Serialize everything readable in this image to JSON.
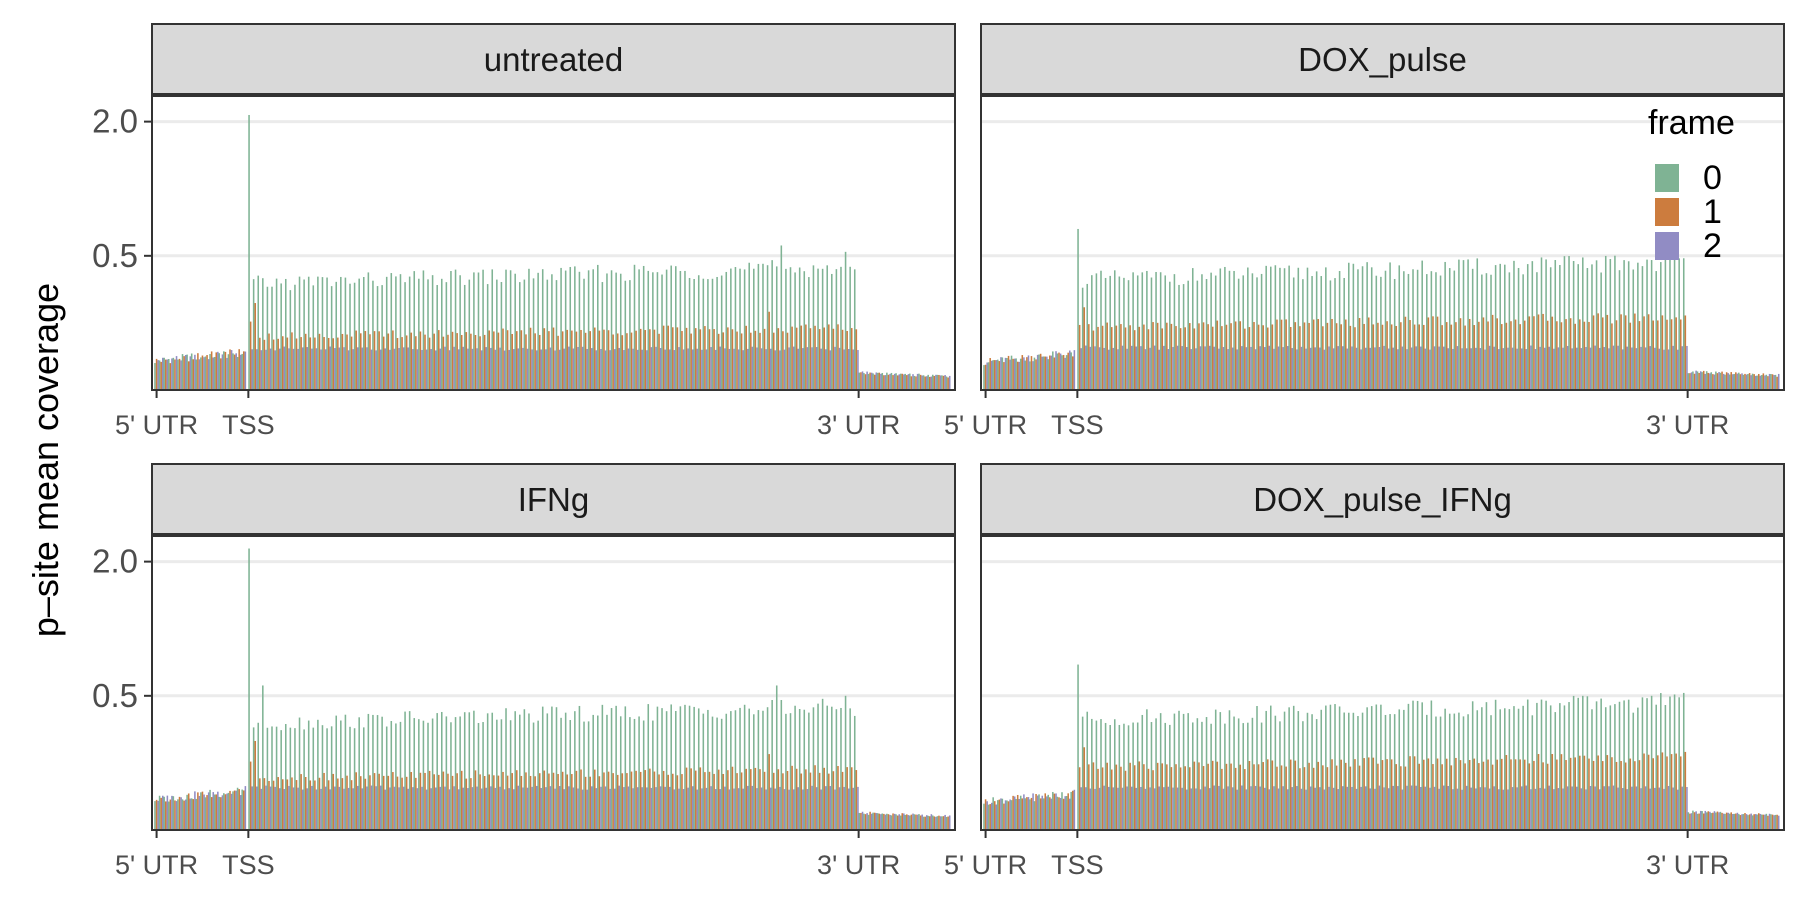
{
  "chart_data": {
    "type": "bar",
    "layout": "facet-grid-2x2",
    "ylabel": "p–site mean coverage",
    "y_scale": "sqrt",
    "y_ticks": [
      0.5,
      2.0
    ],
    "y_tick_labels": [
      "0.5",
      "2.0"
    ],
    "x_ticks": [
      0,
      20,
      153
    ],
    "x_tick_labels": [
      "5' UTR",
      "TSS",
      "3' UTR"
    ],
    "x_range": [
      -1,
      174
    ],
    "grid": "horizontal major only",
    "legend": {
      "title": "frame",
      "placement": "inside top-right of DOX_pulse panel",
      "entries": [
        {
          "label": "0",
          "color": "#7fb394"
        },
        {
          "label": "1",
          "color": "#cc7c3e"
        },
        {
          "label": "2",
          "color": "#918cc4"
        }
      ]
    },
    "colors": {
      "frame0": "#7fb394",
      "frame1": "#cc7c3e",
      "frame2": "#918cc4",
      "strip_background": "#d9d9d9",
      "grid": "#ebebeb",
      "axis_text": "#4d4d4d"
    },
    "regions": {
      "utr5_bins": 20,
      "cds_codons": 133,
      "utr3_bins": 20
    },
    "panels": [
      {
        "title": "untreated",
        "ylim": [
          0,
          2.4
        ],
        "utr5_level": 0.032,
        "utr3_level": 0.008,
        "tss_peak": 2.1,
        "frame0_cds_mean": 0.37,
        "frame1_cds_mean": 0.095,
        "frame2_cds_mean": 0.048,
        "frame0_peaks": [
          {
            "codon": 116,
            "value": 0.58
          },
          {
            "codon": 130,
            "value": 0.53
          }
        ],
        "frame1_peaks": [
          {
            "codon": 0,
            "value": 0.13
          },
          {
            "codon": 1,
            "value": 0.21
          },
          {
            "codon": 113,
            "value": 0.17
          }
        ]
      },
      {
        "title": "DOX_pulse",
        "ylim": [
          0,
          2.4
        ],
        "utr5_level": 0.03,
        "utr3_level": 0.009,
        "tss_peak": 0.72,
        "frame0_cds_mean": 0.4,
        "frame1_cds_mean": 0.13,
        "frame2_cds_mean": 0.05,
        "frame0_peaks": [
          {
            "codon": 133,
            "value": 0.46
          }
        ],
        "frame1_peaks": [
          {
            "codon": 1,
            "value": 0.19
          }
        ]
      },
      {
        "title": "IFNg",
        "ylim": [
          0,
          2.4
        ],
        "utr5_level": 0.035,
        "utr3_level": 0.008,
        "tss_peak": 2.2,
        "frame0_cds_mean": 0.37,
        "frame1_cds_mean": 0.09,
        "frame2_cds_mean": 0.05,
        "frame0_peaks": [
          {
            "codon": 3,
            "value": 0.58
          },
          {
            "codon": 115,
            "value": 0.58
          },
          {
            "codon": 130,
            "value": 0.5
          }
        ],
        "frame1_peaks": [
          {
            "codon": 0,
            "value": 0.13
          },
          {
            "codon": 1,
            "value": 0.22
          },
          {
            "codon": 113,
            "value": 0.16
          }
        ]
      },
      {
        "title": "DOX_pulse_IFNg",
        "ylim": [
          0,
          2.4
        ],
        "utr5_level": 0.03,
        "utr3_level": 0.009,
        "tss_peak": 0.76,
        "frame0_cds_mean": 0.4,
        "frame1_cds_mean": 0.13,
        "frame2_cds_mean": 0.05,
        "frame0_peaks": [
          {
            "codon": 125,
            "value": 0.5
          }
        ],
        "frame1_peaks": [
          {
            "codon": 1,
            "value": 0.19
          }
        ]
      }
    ]
  }
}
